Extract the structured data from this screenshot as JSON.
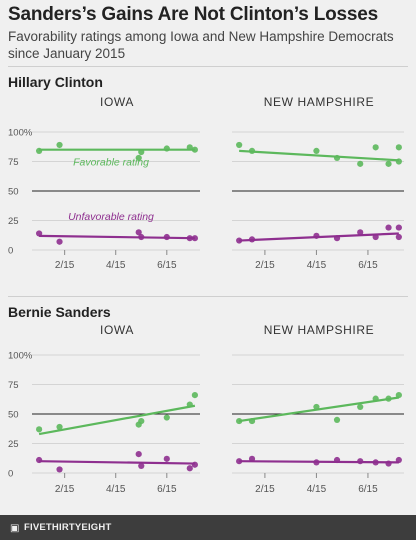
{
  "title": "Sanders’s Gains Are Not Clinton’s Losses",
  "subtitle": "Favorability ratings among Iowa and New Hampshire Democrats since January 2015",
  "footer": {
    "brand": "FIVETHIRTYEIGHT",
    "icon": "fivethirtyeight-logo-icon"
  },
  "colors": {
    "favorable": "#5cb85c",
    "unfavorable": "#8e2f8f",
    "reference": "#222222",
    "grid": "#d4d4d4",
    "background": "#f0f0f0"
  },
  "chart_data": [
    {
      "type": "scatter",
      "section": "Hillary Clinton",
      "title": "IOWA",
      "x_ticks": [
        "2/15",
        "4/15",
        "6/15"
      ],
      "y_ticks": [
        "0",
        "25",
        "50",
        "75",
        "100%"
      ],
      "ylim": [
        0,
        100
      ],
      "reference_line": 50,
      "series": [
        {
          "name": "Favorable rating",
          "color": "favorable",
          "points": [
            [
              1.0,
              84
            ],
            [
              1.8,
              89
            ],
            [
              4.9,
              78
            ],
            [
              5.0,
              83
            ],
            [
              6.0,
              86
            ],
            [
              6.9,
              87
            ],
            [
              7.1,
              85
            ]
          ],
          "trend": [
            [
              1.0,
              85
            ],
            [
              7.1,
              85
            ]
          ]
        },
        {
          "name": "Unfavorable rating",
          "color": "unfavorable",
          "points": [
            [
              1.0,
              14
            ],
            [
              1.8,
              7
            ],
            [
              4.9,
              15
            ],
            [
              5.0,
              11
            ],
            [
              6.0,
              11
            ],
            [
              6.9,
              10
            ],
            [
              7.1,
              10
            ]
          ],
          "trend": [
            [
              1.0,
              12
            ],
            [
              7.1,
              10
            ]
          ]
        }
      ]
    },
    {
      "type": "scatter",
      "section": "Hillary Clinton",
      "title": "NEW HAMPSHIRE",
      "x_ticks": [
        "2/15",
        "4/15",
        "6/15"
      ],
      "y_ticks": [
        "0",
        "25",
        "50",
        "75",
        "100%"
      ],
      "ylim": [
        0,
        100
      ],
      "reference_line": 50,
      "series": [
        {
          "name": "",
          "color": "favorable",
          "points": [
            [
              1.0,
              89
            ],
            [
              1.5,
              84
            ],
            [
              4.0,
              84
            ],
            [
              4.8,
              78
            ],
            [
              5.7,
              73
            ],
            [
              6.3,
              87
            ],
            [
              6.8,
              73
            ],
            [
              7.2,
              87
            ],
            [
              7.2,
              75
            ]
          ],
          "trend": [
            [
              1.0,
              84
            ],
            [
              7.2,
              76
            ]
          ]
        },
        {
          "name": "",
          "color": "unfavorable",
          "points": [
            [
              1.0,
              8
            ],
            [
              1.5,
              9
            ],
            [
              4.0,
              12
            ],
            [
              4.8,
              10
            ],
            [
              5.7,
              15
            ],
            [
              6.3,
              11
            ],
            [
              6.8,
              19
            ],
            [
              7.2,
              19
            ],
            [
              7.2,
              11
            ]
          ],
          "trend": [
            [
              1.0,
              8
            ],
            [
              7.2,
              14
            ]
          ]
        }
      ]
    },
    {
      "type": "scatter",
      "section": "Bernie Sanders",
      "title": "IOWA",
      "x_ticks": [
        "2/15",
        "4/15",
        "6/15"
      ],
      "y_ticks": [
        "0",
        "25",
        "50",
        "75",
        "100%"
      ],
      "ylim": [
        0,
        100
      ],
      "reference_line": 50,
      "series": [
        {
          "name": "",
          "color": "favorable",
          "points": [
            [
              1.0,
              37
            ],
            [
              1.8,
              39
            ],
            [
              4.9,
              41
            ],
            [
              5.0,
              44
            ],
            [
              6.0,
              47
            ],
            [
              6.9,
              58
            ],
            [
              7.1,
              66
            ]
          ],
          "trend": [
            [
              1.0,
              33
            ],
            [
              7.1,
              57
            ]
          ]
        },
        {
          "name": "",
          "color": "unfavorable",
          "points": [
            [
              1.0,
              11
            ],
            [
              1.8,
              3
            ],
            [
              4.9,
              16
            ],
            [
              5.0,
              6
            ],
            [
              6.0,
              12
            ],
            [
              6.9,
              4
            ],
            [
              7.1,
              7
            ]
          ],
          "trend": [
            [
              1.0,
              10
            ],
            [
              7.1,
              8
            ]
          ]
        }
      ]
    },
    {
      "type": "scatter",
      "section": "Bernie Sanders",
      "title": "NEW HAMPSHIRE",
      "x_ticks": [
        "2/15",
        "4/15",
        "6/15"
      ],
      "y_ticks": [
        "0",
        "25",
        "50",
        "75",
        "100%"
      ],
      "ylim": [
        0,
        100
      ],
      "reference_line": 50,
      "series": [
        {
          "name": "",
          "color": "favorable",
          "points": [
            [
              1.0,
              44
            ],
            [
              1.5,
              44
            ],
            [
              4.0,
              56
            ],
            [
              4.8,
              45
            ],
            [
              5.7,
              56
            ],
            [
              6.3,
              63
            ],
            [
              6.8,
              63
            ],
            [
              7.2,
              66
            ]
          ],
          "trend": [
            [
              1.0,
              44
            ],
            [
              7.2,
              64
            ]
          ]
        },
        {
          "name": "",
          "color": "unfavorable",
          "points": [
            [
              1.0,
              10
            ],
            [
              1.5,
              12
            ],
            [
              4.0,
              9
            ],
            [
              4.8,
              11
            ],
            [
              5.7,
              10
            ],
            [
              6.3,
              9
            ],
            [
              6.8,
              8
            ],
            [
              7.2,
              11
            ]
          ],
          "trend": [
            [
              1.0,
              10
            ],
            [
              7.2,
              9
            ]
          ]
        }
      ]
    }
  ],
  "sections": [
    "Hillary Clinton",
    "Bernie Sanders"
  ]
}
